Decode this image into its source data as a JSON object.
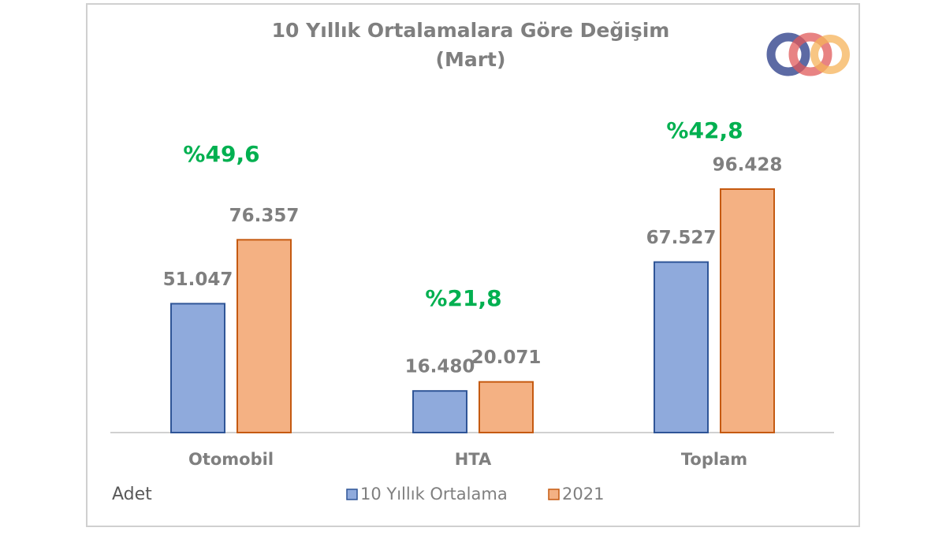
{
  "chart_data": {
    "type": "bar",
    "title": "10 Yıllık Ortalamalara  Göre Değişim",
    "subtitle": "(Mart)",
    "categories": [
      "Otomobil",
      "HTA",
      "Toplam"
    ],
    "series": [
      {
        "name": "10 Yıllık Ortalama",
        "color": "#8faadc",
        "edge_color": "#2f5597",
        "values": [
          51047,
          16480,
          67527
        ],
        "value_labels": [
          "51.047",
          "16.480",
          "67.527"
        ]
      },
      {
        "name": "2021",
        "color": "#f4b183",
        "edge_color": "#c55a11",
        "values": [
          76357,
          20071,
          96428
        ],
        "value_labels": [
          "76.357",
          "20.071",
          "96.428"
        ]
      }
    ],
    "annotations": [
      "%49,6",
      "%21,8",
      "%42,8"
    ],
    "unit_label": "Adet"
  }
}
